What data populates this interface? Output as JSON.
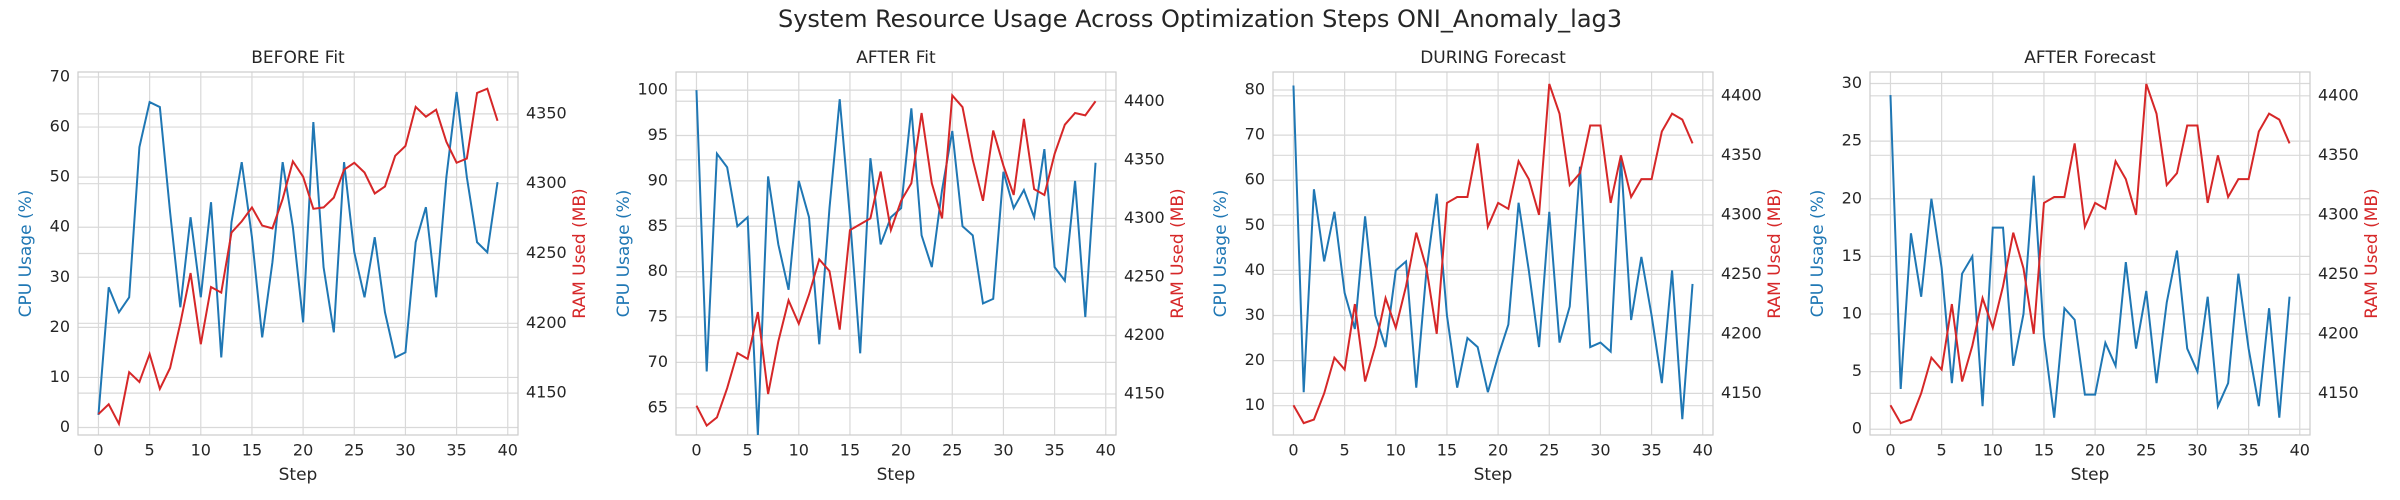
{
  "title": "System Resource Usage Across Optimization Steps ONI_Anomaly_lag3",
  "chart_data": [
    {
      "type": "line",
      "title": "BEFORE Fit",
      "xlabel": "Step",
      "ylabel": "CPU Usage (%)",
      "y2label": "RAM Used (MB)",
      "grid": true,
      "x": [
        0,
        1,
        2,
        3,
        4,
        5,
        6,
        7,
        8,
        9,
        10,
        11,
        12,
        13,
        14,
        15,
        16,
        17,
        18,
        19,
        20,
        21,
        22,
        23,
        24,
        25,
        26,
        27,
        28,
        29,
        30,
        31,
        32,
        33,
        34,
        35,
        36,
        37,
        38,
        39
      ],
      "xlim": [
        -2,
        41
      ],
      "xticks": [
        0,
        5,
        10,
        15,
        20,
        25,
        30,
        35,
        40
      ],
      "ylim": [
        -1.5,
        71
      ],
      "yticks": [
        0,
        10,
        20,
        30,
        40,
        50,
        60,
        70
      ],
      "y2lim": [
        4120,
        4380
      ],
      "y2ticks": [
        4150,
        4200,
        4250,
        4300,
        4350
      ],
      "series": [
        {
          "color": "#1f77b4",
          "values": [
            2.5,
            28,
            23,
            26,
            56,
            65,
            64,
            43,
            24,
            42,
            26,
            45,
            14,
            41,
            53,
            38,
            18,
            33,
            53,
            40,
            21,
            61,
            32,
            19,
            53,
            35,
            26,
            38,
            23,
            14,
            15,
            37,
            44,
            26,
            50,
            67,
            50,
            37,
            35,
            49
          ]
        },
        {
          "color": "#d62728",
          "axis": "y2",
          "values": [
            4135,
            4142,
            4128,
            4165,
            4158,
            4178,
            4153,
            4168,
            4200,
            4236,
            4185,
            4226,
            4222,
            4265,
            4273,
            4283,
            4270,
            4268,
            4289,
            4316,
            4305,
            4282,
            4283,
            4290,
            4310,
            4315,
            4308,
            4293,
            4298,
            4320,
            4327,
            4355,
            4348,
            4353,
            4330,
            4315,
            4318,
            4365,
            4368,
            4345
          ]
        }
      ]
    },
    {
      "type": "line",
      "title": "AFTER Fit",
      "xlabel": "Step",
      "ylabel": "CPU Usage (%)",
      "y2label": "RAM Used (MB)",
      "grid": true,
      "x": [
        0,
        1,
        2,
        3,
        4,
        5,
        6,
        7,
        8,
        9,
        10,
        11,
        12,
        13,
        14,
        15,
        16,
        17,
        18,
        19,
        20,
        21,
        22,
        23,
        24,
        25,
        26,
        27,
        28,
        29,
        30,
        31,
        32,
        33,
        34,
        35,
        36,
        37,
        38,
        39
      ],
      "xlim": [
        -2,
        41
      ],
      "xticks": [
        0,
        5,
        10,
        15,
        20,
        25,
        30,
        35,
        40
      ],
      "ylim": [
        62,
        102
      ],
      "yticks": [
        65,
        70,
        75,
        80,
        85,
        90,
        95,
        100
      ],
      "y2lim": [
        4115,
        4425
      ],
      "y2ticks": [
        4150,
        4200,
        4250,
        4300,
        4350,
        4400
      ],
      "series": [
        {
          "color": "#1f77b4",
          "values": [
            100,
            69,
            93,
            91.5,
            85,
            86,
            62,
            90.5,
            83,
            78,
            90,
            86,
            72,
            87,
            99,
            86,
            71,
            92.5,
            83,
            86,
            87,
            98,
            84,
            80.5,
            89,
            95.5,
            85,
            84,
            76.5,
            77,
            91,
            87,
            89,
            86,
            93.5,
            80.5,
            79,
            90,
            75,
            92
          ]
        },
        {
          "color": "#d62728",
          "axis": "y2",
          "values": [
            4140,
            4123,
            4130,
            4155,
            4185,
            4180,
            4220,
            4150,
            4195,
            4230,
            4210,
            4235,
            4265,
            4255,
            4205,
            4290,
            4295,
            4300,
            4340,
            4290,
            4315,
            4330,
            4390,
            4330,
            4300,
            4405,
            4395,
            4350,
            4315,
            4375,
            4345,
            4320,
            4385,
            4325,
            4320,
            4355,
            4380,
            4390,
            4388,
            4400
          ]
        }
      ]
    },
    {
      "type": "line",
      "title": "DURING Forecast",
      "xlabel": "Step",
      "ylabel": "CPU Usage (%)",
      "y2label": "RAM Used (MB)",
      "grid": true,
      "x": [
        0,
        1,
        2,
        3,
        4,
        5,
        6,
        7,
        8,
        9,
        10,
        11,
        12,
        13,
        14,
        15,
        16,
        17,
        18,
        19,
        20,
        21,
        22,
        23,
        24,
        25,
        26,
        27,
        28,
        29,
        30,
        31,
        32,
        33,
        34,
        35,
        36,
        37,
        38,
        39
      ],
      "xlim": [
        -2,
        41
      ],
      "xticks": [
        0,
        5,
        10,
        15,
        20,
        25,
        30,
        35,
        40
      ],
      "ylim": [
        3.5,
        84
      ],
      "yticks": [
        10,
        20,
        30,
        40,
        50,
        60,
        70,
        80
      ],
      "y2lim": [
        4115,
        4420
      ],
      "y2ticks": [
        4150,
        4200,
        4250,
        4300,
        4350,
        4400
      ],
      "series": [
        {
          "color": "#1f77b4",
          "values": [
            81,
            13,
            58,
            42,
            53,
            35,
            27,
            52,
            30,
            23,
            40,
            42,
            14,
            40,
            57,
            30,
            14,
            25,
            23,
            13,
            21,
            28,
            55,
            40,
            23,
            53,
            24,
            32,
            63,
            23,
            24,
            22,
            65,
            29,
            43,
            30,
            15,
            40,
            7,
            37
          ]
        },
        {
          "color": "#d62728",
          "axis": "y2",
          "values": [
            4140,
            4125,
            4128,
            4150,
            4180,
            4170,
            4225,
            4160,
            4190,
            4230,
            4205,
            4240,
            4285,
            4255,
            4200,
            4310,
            4315,
            4315,
            4360,
            4290,
            4310,
            4305,
            4345,
            4330,
            4300,
            4410,
            4385,
            4325,
            4335,
            4375,
            4375,
            4310,
            4350,
            4315,
            4330,
            4330,
            4370,
            4385,
            4380,
            4360
          ]
        }
      ]
    },
    {
      "type": "line",
      "title": "AFTER Forecast",
      "xlabel": "Step",
      "ylabel": "CPU Usage (%)",
      "y2label": "RAM Used (MB)",
      "grid": true,
      "x": [
        0,
        1,
        2,
        3,
        4,
        5,
        6,
        7,
        8,
        9,
        10,
        11,
        12,
        13,
        14,
        15,
        16,
        17,
        18,
        19,
        20,
        21,
        22,
        23,
        24,
        25,
        26,
        27,
        28,
        29,
        30,
        31,
        32,
        33,
        34,
        35,
        36,
        37,
        38,
        39
      ],
      "xlim": [
        -2,
        41
      ],
      "xticks": [
        0,
        5,
        10,
        15,
        20,
        25,
        30,
        35,
        40
      ],
      "ylim": [
        -0.5,
        31
      ],
      "yticks": [
        0,
        5,
        10,
        15,
        20,
        25,
        30
      ],
      "y2lim": [
        4115,
        4420
      ],
      "y2ticks": [
        4150,
        4200,
        4250,
        4300,
        4350,
        4400
      ],
      "series": [
        {
          "color": "#1f77b4",
          "values": [
            29,
            3.5,
            17,
            11.5,
            20,
            14,
            4,
            13.5,
            15,
            2,
            17.5,
            17.5,
            5.5,
            10,
            22,
            8,
            1,
            10.5,
            9.5,
            3,
            3,
            7.5,
            5.5,
            14.5,
            7,
            12,
            4,
            11,
            15.5,
            7,
            5,
            11.5,
            2,
            4,
            13.5,
            7,
            2,
            10.5,
            1,
            11.5
          ]
        },
        {
          "color": "#d62728",
          "axis": "y2",
          "values": [
            4140,
            4125,
            4128,
            4150,
            4180,
            4170,
            4225,
            4160,
            4190,
            4230,
            4205,
            4240,
            4285,
            4255,
            4200,
            4310,
            4315,
            4315,
            4360,
            4290,
            4310,
            4305,
            4345,
            4330,
            4300,
            4410,
            4385,
            4325,
            4335,
            4375,
            4375,
            4310,
            4350,
            4315,
            4330,
            4330,
            4370,
            4385,
            4380,
            4360
          ]
        }
      ]
    }
  ]
}
